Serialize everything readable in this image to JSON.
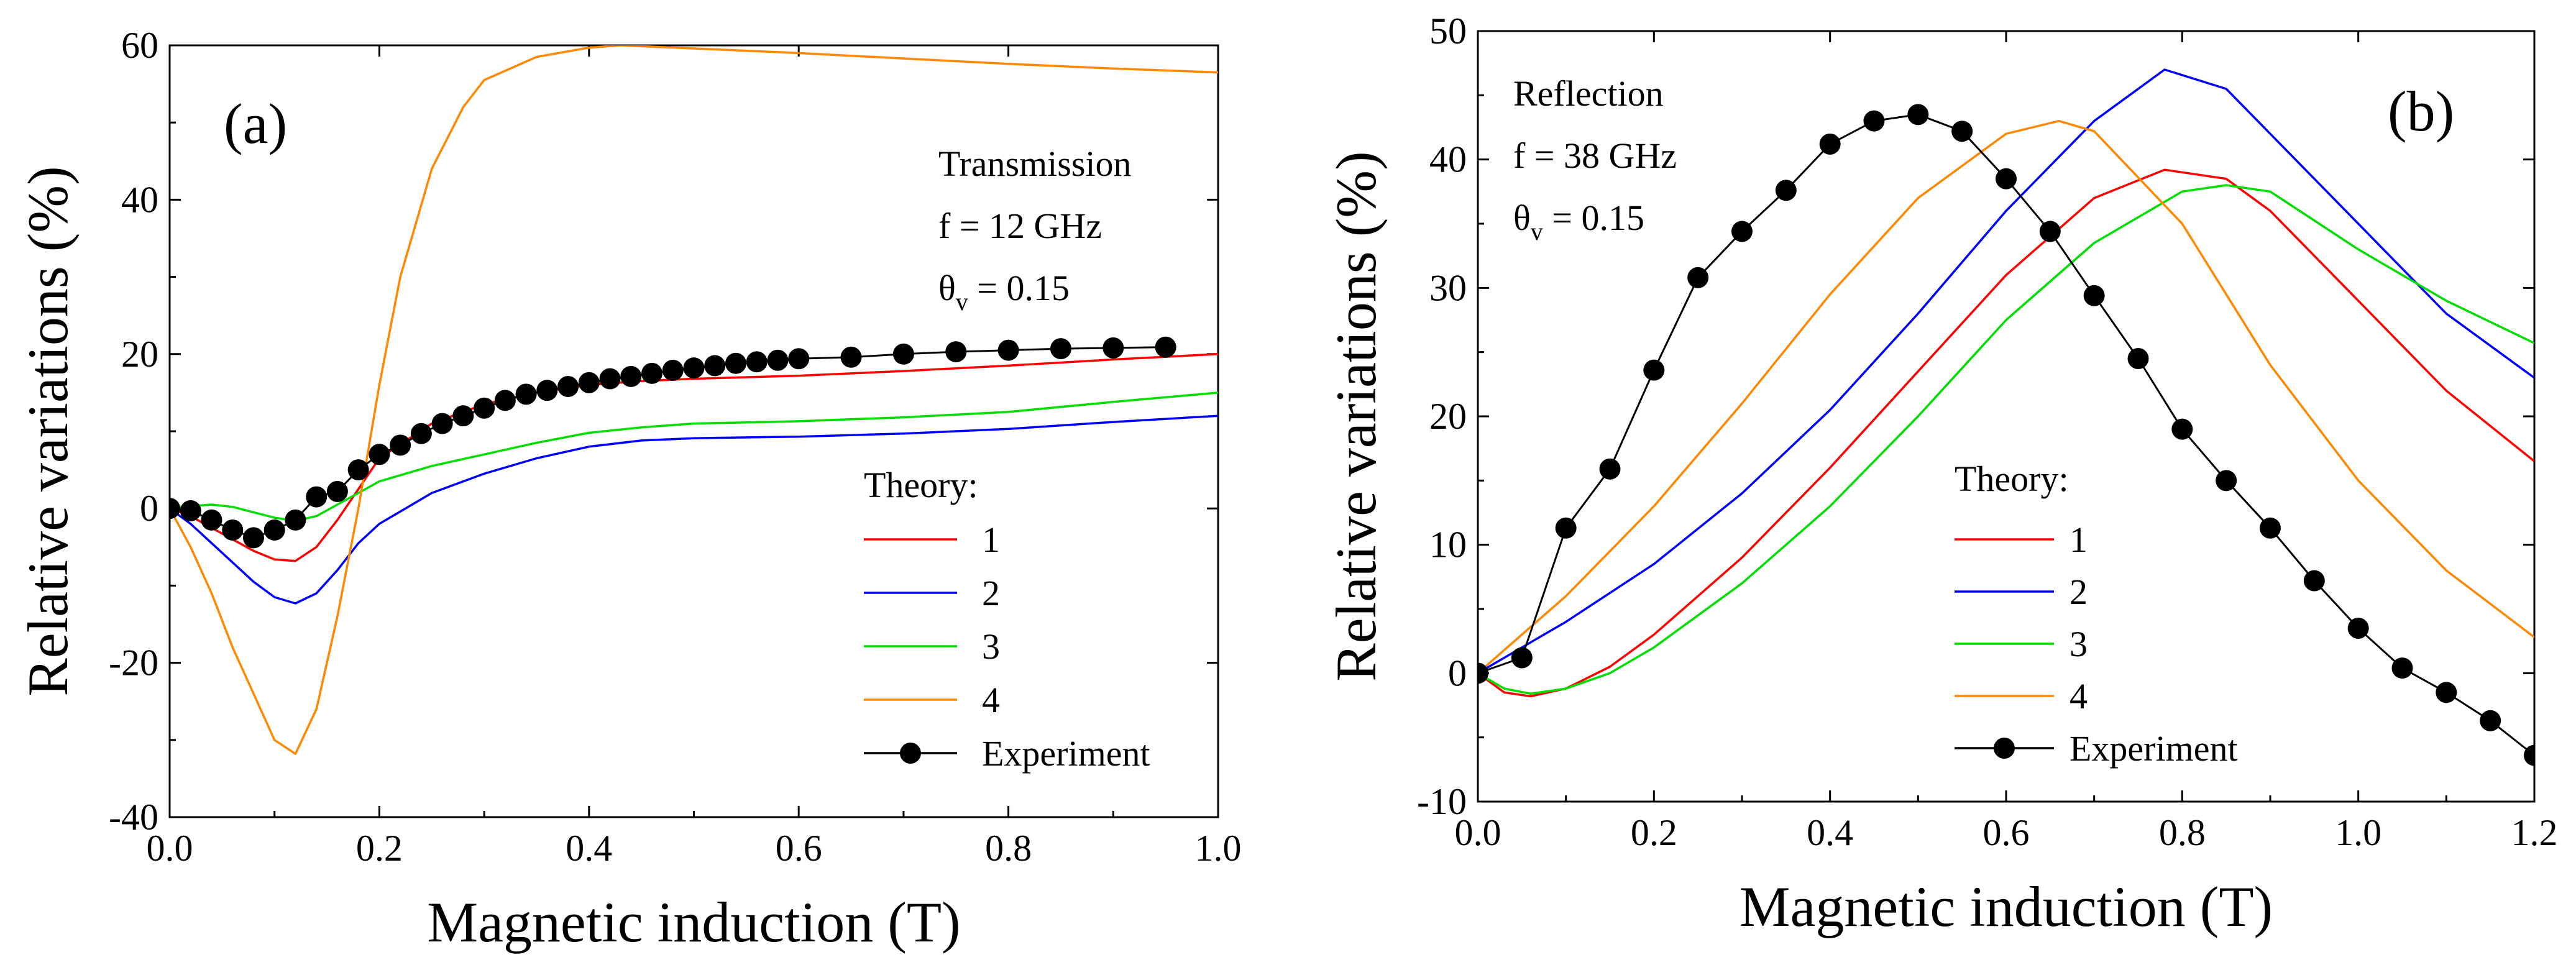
{
  "chart_data": [
    {
      "type": "line",
      "panel_label": "(a)",
      "xlabel": "Magnetic induction (T)",
      "ylabel": "Relative variations (%)",
      "xlim": [
        0.0,
        1.0
      ],
      "ylim": [
        -40,
        60
      ],
      "x_ticks": [
        0.0,
        0.2,
        0.4,
        0.6,
        0.8,
        1.0
      ],
      "x_tick_labels": [
        "0.0",
        "0.2",
        "0.4",
        "0.6",
        "0.8",
        "1.0"
      ],
      "y_ticks": [
        -40,
        -20,
        0,
        20,
        40,
        60
      ],
      "y_tick_labels": [
        "-40",
        "-20",
        "0",
        "20",
        "40",
        "60"
      ],
      "annotation": [
        "Transmission",
        "f = 12 GHz",
        "θ",
        "v",
        " = 0.15"
      ],
      "legend_title": "Theory:",
      "legend_position": "lower-right",
      "series": [
        {
          "name": "1",
          "color": "#ff0000",
          "x": [
            0.0,
            0.02,
            0.04,
            0.06,
            0.08,
            0.1,
            0.12,
            0.14,
            0.16,
            0.18,
            0.2,
            0.25,
            0.3,
            0.35,
            0.4,
            0.45,
            0.5,
            0.6,
            0.7,
            0.8,
            0.9,
            1.0
          ],
          "y": [
            0,
            -1,
            -2.5,
            -4,
            -5.5,
            -6.6,
            -6.8,
            -5,
            -1.5,
            2.5,
            6.5,
            11,
            13.5,
            15,
            16,
            16.5,
            16.8,
            17.2,
            17.8,
            18.5,
            19.3,
            20
          ]
        },
        {
          "name": "2",
          "color": "#0000ff",
          "x": [
            0.0,
            0.02,
            0.04,
            0.06,
            0.08,
            0.1,
            0.12,
            0.14,
            0.16,
            0.18,
            0.2,
            0.25,
            0.3,
            0.35,
            0.4,
            0.45,
            0.5,
            0.6,
            0.7,
            0.8,
            0.9,
            1.0
          ],
          "y": [
            0,
            -2,
            -4.5,
            -7,
            -9.5,
            -11.5,
            -12.3,
            -11,
            -8,
            -4.5,
            -2,
            2,
            4.5,
            6.5,
            8,
            8.8,
            9.1,
            9.3,
            9.7,
            10.3,
            11.2,
            12
          ]
        },
        {
          "name": "3",
          "color": "#00dd00",
          "x": [
            0.0,
            0.02,
            0.04,
            0.06,
            0.08,
            0.1,
            0.12,
            0.14,
            0.16,
            0.18,
            0.2,
            0.25,
            0.3,
            0.35,
            0.4,
            0.45,
            0.5,
            0.6,
            0.7,
            0.8,
            0.9,
            1.0
          ],
          "y": [
            0,
            0.3,
            0.5,
            0.2,
            -0.5,
            -1.2,
            -1.6,
            -1,
            0.5,
            2,
            3.5,
            5.5,
            7,
            8.5,
            9.8,
            10.5,
            11,
            11.3,
            11.8,
            12.5,
            13.8,
            15
          ]
        },
        {
          "name": "4",
          "color": "#ff8800",
          "x": [
            0.0,
            0.02,
            0.04,
            0.06,
            0.08,
            0.1,
            0.12,
            0.14,
            0.16,
            0.18,
            0.2,
            0.22,
            0.25,
            0.28,
            0.3,
            0.35,
            0.4,
            0.43,
            0.5,
            0.6,
            0.7,
            0.8,
            0.9,
            1.0
          ],
          "y": [
            0,
            -5,
            -11,
            -18,
            -24,
            -30,
            -31.8,
            -26,
            -14,
            0,
            16,
            30,
            44,
            52,
            55.5,
            58.5,
            59.7,
            60,
            59.6,
            59,
            58.3,
            57.6,
            57,
            56.5
          ]
        },
        {
          "name": "Experiment",
          "color": "#000000",
          "marker": "circle",
          "x": [
            0.0,
            0.02,
            0.04,
            0.06,
            0.08,
            0.1,
            0.12,
            0.14,
            0.16,
            0.18,
            0.2,
            0.22,
            0.24,
            0.26,
            0.28,
            0.3,
            0.32,
            0.34,
            0.36,
            0.38,
            0.4,
            0.42,
            0.44,
            0.46,
            0.48,
            0.5,
            0.52,
            0.54,
            0.56,
            0.58,
            0.6,
            0.65,
            0.7,
            0.75,
            0.8,
            0.85,
            0.9,
            0.95
          ],
          "y": [
            0,
            -0.3,
            -1.5,
            -2.8,
            -3.8,
            -2.8,
            -1.5,
            1.5,
            2.2,
            5,
            7,
            8.2,
            9.7,
            11,
            12,
            13,
            14,
            14.8,
            15.3,
            15.8,
            16.3,
            16.8,
            17.1,
            17.5,
            17.9,
            18.2,
            18.5,
            18.8,
            19,
            19.2,
            19.4,
            19.6,
            20,
            20.3,
            20.5,
            20.7,
            20.8,
            20.9
          ]
        }
      ]
    },
    {
      "type": "line",
      "panel_label": "(b)",
      "xlabel": "Magnetic induction (T)",
      "ylabel": "Relative variations (%)",
      "xlim": [
        0.0,
        1.2
      ],
      "ylim": [
        -10,
        50
      ],
      "x_ticks": [
        0.0,
        0.2,
        0.4,
        0.6,
        0.8,
        1.0,
        1.2
      ],
      "x_tick_labels": [
        "0.0",
        "0.2",
        "0.4",
        "0.6",
        "0.8",
        "1.0",
        "1.2"
      ],
      "y_ticks": [
        -10,
        0,
        10,
        20,
        30,
        40,
        50
      ],
      "y_tick_labels": [
        "-10",
        "0",
        "10",
        "20",
        "30",
        "40",
        "50"
      ],
      "annotation": [
        "Reflection",
        "f = 38 GHz",
        "θ",
        "v",
        " = 0.15"
      ],
      "legend_title": "Theory:",
      "legend_position": "lower-right",
      "series": [
        {
          "name": "1",
          "color": "#ff0000",
          "x": [
            0.0,
            0.03,
            0.06,
            0.1,
            0.15,
            0.2,
            0.3,
            0.4,
            0.5,
            0.6,
            0.7,
            0.78,
            0.85,
            0.9,
            1.0,
            1.1,
            1.2
          ],
          "y": [
            0,
            -1.5,
            -1.8,
            -1.2,
            0.5,
            3,
            9,
            16,
            23.5,
            31,
            37,
            39.2,
            38.5,
            36,
            29,
            22,
            16.5
          ]
        },
        {
          "name": "2",
          "color": "#0000ff",
          "x": [
            0.0,
            0.05,
            0.1,
            0.2,
            0.3,
            0.4,
            0.5,
            0.6,
            0.7,
            0.78,
            0.85,
            0.9,
            1.0,
            1.1,
            1.2
          ],
          "y": [
            0,
            2,
            4,
            8.5,
            14,
            20.5,
            28,
            36,
            43,
            47,
            45.5,
            42,
            35,
            28,
            23
          ]
        },
        {
          "name": "3",
          "color": "#00dd00",
          "x": [
            0.0,
            0.03,
            0.06,
            0.1,
            0.15,
            0.2,
            0.3,
            0.4,
            0.5,
            0.6,
            0.7,
            0.8,
            0.85,
            0.9,
            1.0,
            1.1,
            1.2
          ],
          "y": [
            0,
            -1.2,
            -1.6,
            -1.2,
            0,
            2,
            7,
            13,
            20,
            27.5,
            33.5,
            37.5,
            38,
            37.5,
            33,
            29,
            25.7
          ]
        },
        {
          "name": "4",
          "color": "#ff8800",
          "x": [
            0.0,
            0.05,
            0.1,
            0.2,
            0.3,
            0.4,
            0.5,
            0.6,
            0.66,
            0.7,
            0.8,
            0.9,
            1.0,
            1.1,
            1.2
          ],
          "y": [
            0,
            3,
            6,
            13,
            21,
            29.5,
            37,
            42,
            43,
            42.2,
            35,
            24,
            15,
            8,
            2.8
          ]
        },
        {
          "name": "Experiment",
          "color": "#000000",
          "marker": "circle",
          "x": [
            0.0,
            0.05,
            0.1,
            0.15,
            0.2,
            0.25,
            0.3,
            0.35,
            0.4,
            0.45,
            0.5,
            0.55,
            0.6,
            0.65,
            0.7,
            0.75,
            0.8,
            0.85,
            0.9,
            0.95,
            1.0,
            1.05,
            1.1,
            1.15,
            1.2
          ],
          "y": [
            0,
            1.2,
            11.3,
            15.9,
            23.6,
            30.8,
            34.4,
            37.6,
            41.2,
            43,
            43.5,
            42.2,
            38.5,
            34.4,
            29.4,
            24.5,
            19,
            15,
            11.3,
            7.2,
            3.5,
            0.4,
            -1.5,
            -3.7,
            -6.4
          ]
        }
      ]
    }
  ]
}
